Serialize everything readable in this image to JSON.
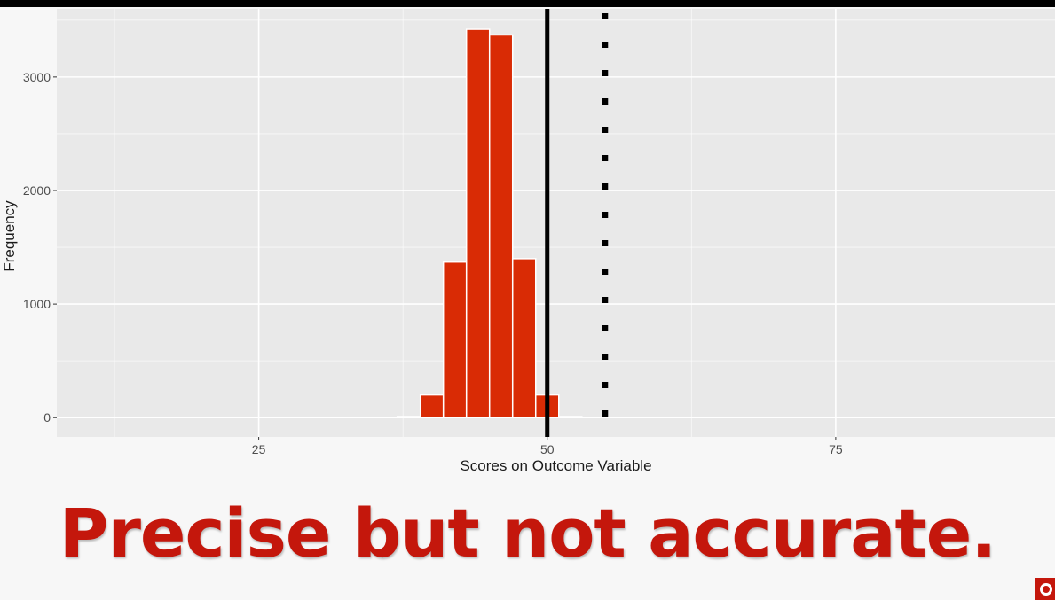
{
  "caption": "Precise but not accurate.",
  "logo": "brand-logo",
  "colors": {
    "panel": "#e9e9e9",
    "grid": "#ffffff",
    "bar_fill": "#d92b05",
    "bar_outline": "#ffffff",
    "caption": "#c4170c"
  },
  "chart_data": {
    "type": "bar",
    "title": "",
    "xlabel": "Scores on Outcome Variable",
    "ylabel": "Frequency",
    "xlim": [
      7.5,
      94
    ],
    "ylim": [
      -170,
      3600
    ],
    "x_ticks": [
      25,
      50,
      75
    ],
    "y_ticks": [
      0,
      1000,
      2000,
      3000
    ],
    "grid": true,
    "bin_width": 2,
    "bins": [
      {
        "center": 38,
        "count": 10
      },
      {
        "center": 40,
        "count": 200
      },
      {
        "center": 42,
        "count": 1370
      },
      {
        "center": 44,
        "count": 3420
      },
      {
        "center": 46,
        "count": 3370
      },
      {
        "center": 48,
        "count": 1400
      },
      {
        "center": 50,
        "count": 200
      },
      {
        "center": 52,
        "count": 10
      }
    ],
    "reference_lines": [
      {
        "x": 50,
        "style": "solid"
      },
      {
        "x": 55,
        "style": "dotted"
      }
    ]
  }
}
